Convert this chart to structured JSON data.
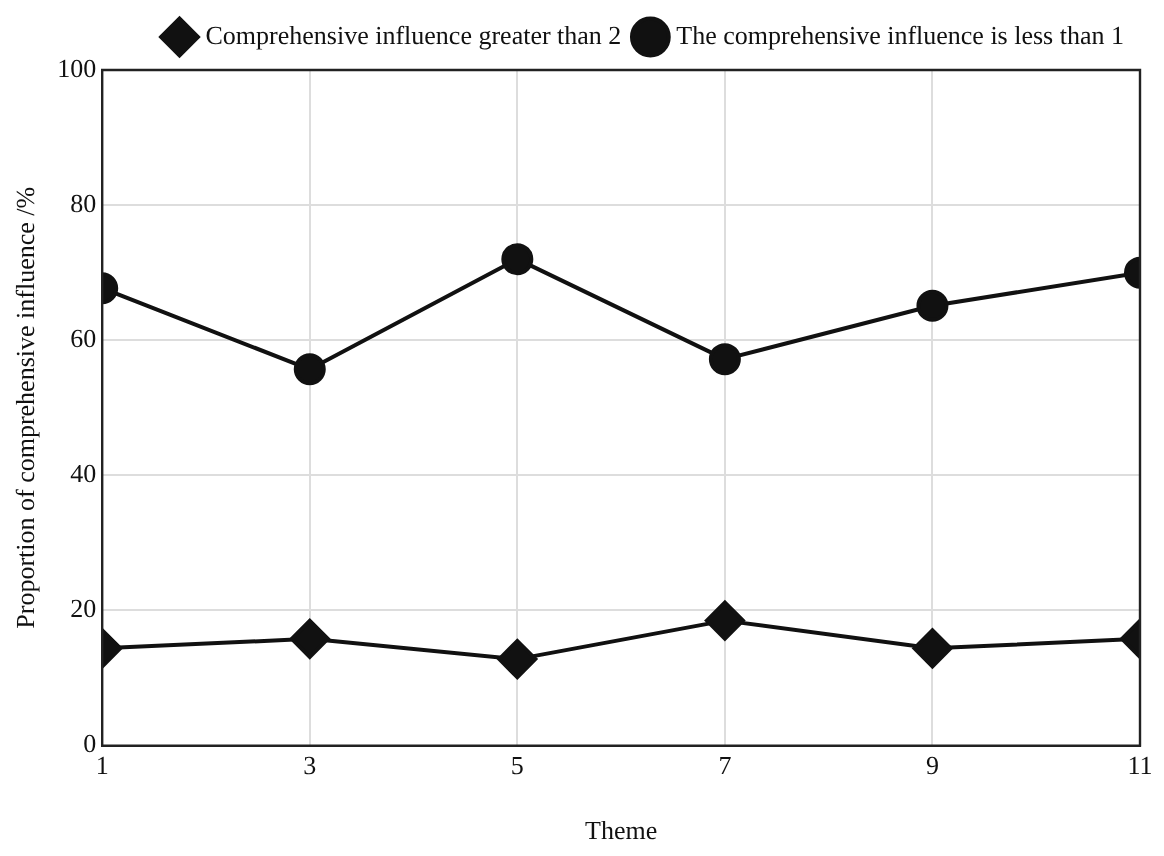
{
  "chart_data": {
    "type": "line",
    "xlabel": "Theme",
    "ylabel": "Proportion of comprehensive influence /%",
    "x": [
      1,
      3,
      5,
      7,
      9,
      11
    ],
    "series": [
      {
        "name": "Comprehensive influence greater than 2",
        "color": "#111111",
        "marker": "diamond",
        "values": [
          14.4,
          15.8,
          12.8,
          18.5,
          14.4,
          15.8
        ]
      },
      {
        "name": "The comprehensive influence is less than 1",
        "color": "#111111",
        "marker": "circle",
        "values": [
          67.7,
          55.7,
          72.0,
          57.2,
          65.1,
          70.0
        ]
      }
    ],
    "xlim": [
      1,
      11
    ],
    "xticks": [
      1,
      3,
      5,
      7,
      9,
      11
    ],
    "ylim": [
      0,
      100
    ],
    "yticks": [
      0,
      20,
      40,
      60,
      80,
      100
    ],
    "grid": true,
    "legend": "top right",
    "line_style": "solid"
  }
}
